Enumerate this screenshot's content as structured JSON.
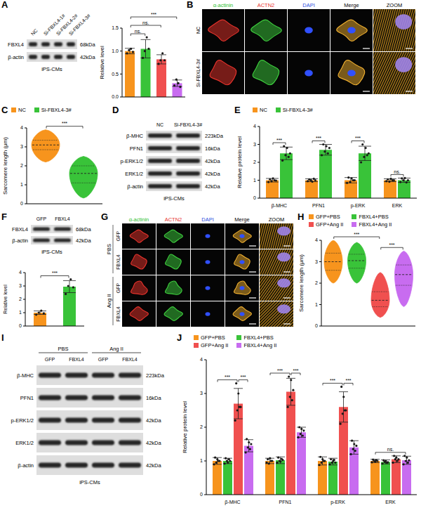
{
  "chart_data": [
    {
      "panel": "A",
      "type": "bar",
      "ylabel": "Relative level",
      "categories": [
        null,
        null,
        null,
        null
      ],
      "values": [
        1.0,
        1.05,
        0.82,
        0.3
      ],
      "errors": [
        0.06,
        0.2,
        0.1,
        0.07
      ],
      "points": [
        [
          0.95,
          1.02,
          1.05,
          0.98
        ],
        [
          0.85,
          1.0,
          1.3,
          1.05
        ],
        [
          0.72,
          0.8,
          0.95,
          0.8
        ],
        [
          0.25,
          0.38,
          0.3,
          0.22
        ]
      ],
      "colors": [
        "#f7941d",
        "#39c339",
        "#f0504f",
        "#c86cf0"
      ],
      "ylim": [
        0,
        1.5
      ],
      "yticks": [
        {
          "value": 0,
          "label": "0.0"
        },
        {
          "value": 0.5,
          "label": "0.5"
        },
        {
          "value": 1,
          "label": "1.0"
        },
        {
          "value": 1.5,
          "label": "1.5"
        }
      ],
      "tick_labels": "y",
      "annotations": [
        {
          "between": [
            0,
            1
          ],
          "label": "ns."
        },
        {
          "between": [
            0,
            2
          ],
          "label": "ns."
        },
        {
          "between": [
            0,
            3
          ],
          "label": "***"
        }
      ]
    },
    {
      "panel": "C",
      "type": "violin",
      "ylabel": "Sarcomere length (μm)",
      "legend": "top",
      "tick_labels": "y",
      "series": [
        {
          "name": "NC",
          "color": "#f7941d",
          "min": 2.2,
          "q1": 2.85,
          "median": 3.1,
          "q3": 3.35,
          "max": 3.9
        },
        {
          "name": "Si-FBXL4-3#",
          "color": "#39c339",
          "min": 0.3,
          "q1": 1.1,
          "median": 1.6,
          "q3": 2.0,
          "max": 2.5
        }
      ],
      "ylim": [
        0,
        4
      ],
      "yticks": [
        0,
        1,
        2,
        3,
        4
      ],
      "annotations": [
        {
          "between": [
            0,
            1
          ],
          "label": "***"
        }
      ]
    },
    {
      "panel": "E",
      "type": "bar",
      "ylabel": "Relative protein level",
      "legend": "top",
      "categories": [
        "β-MHC",
        "PFN1",
        "p-ERK",
        "ERK"
      ],
      "series": [
        {
          "name": "NC",
          "color": "#f7941d",
          "values": [
            1.0,
            1.0,
            1.0,
            1.0
          ],
          "errors": [
            0.1,
            0.08,
            0.15,
            0.08
          ],
          "points": [
            [
              0.9,
              1.05,
              0.95,
              1.1,
              1.0,
              0.98
            ],
            [
              0.95,
              1.05,
              1.0,
              0.92,
              1.08,
              1.0
            ],
            [
              0.85,
              1.15,
              0.9,
              1.1,
              1.0,
              1.0
            ],
            [
              0.95,
              1.05,
              0.92,
              1.08,
              1.0,
              1.0
            ]
          ]
        },
        {
          "name": "Si-FBXL4-3#",
          "color": "#39c339",
          "values": [
            2.5,
            2.7,
            2.5,
            1.0
          ],
          "errors": [
            0.35,
            0.3,
            0.4,
            0.12
          ],
          "points": [
            [
              2.1,
              2.9,
              2.4,
              2.8,
              2.3,
              2.5
            ],
            [
              2.4,
              3.0,
              2.6,
              2.9,
              2.5,
              2.8
            ],
            [
              2.0,
              3.0,
              2.3,
              2.8,
              2.4,
              2.5
            ],
            [
              0.9,
              1.1,
              1.0,
              1.12,
              0.88,
              1.0
            ]
          ]
        }
      ],
      "ylim": [
        0,
        4
      ],
      "yticks": [
        0,
        1,
        2,
        3,
        4
      ],
      "annotations": [
        {
          "category": 0,
          "between": [
            0,
            1
          ],
          "label": "***"
        },
        {
          "category": 1,
          "between": [
            0,
            1
          ],
          "label": "***"
        },
        {
          "category": 2,
          "between": [
            0,
            1
          ],
          "label": "***"
        },
        {
          "category": 3,
          "between": [
            0,
            1
          ],
          "label": "ns."
        }
      ]
    },
    {
      "panel": "F",
      "type": "bar",
      "ylabel": "Relative level",
      "categories": [
        null,
        null
      ],
      "values": [
        1.0,
        2.95
      ],
      "errors": [
        0.13,
        0.45
      ],
      "points": [
        [
          0.85,
          1.0,
          1.15,
          0.95
        ],
        [
          2.4,
          3.0,
          3.5,
          2.9
        ]
      ],
      "colors": [
        "#f7941d",
        "#39c339"
      ],
      "ylim": [
        0,
        4
      ],
      "yticks": [
        0,
        1,
        2,
        3,
        4
      ],
      "tick_labels": "y",
      "annotations": [
        {
          "between": [
            0,
            1
          ],
          "label": "***"
        }
      ]
    },
    {
      "panel": "H",
      "type": "violin",
      "ylabel": "Sarcomere length (μm)",
      "legend": "top",
      "tick_labels": "y",
      "series": [
        {
          "name": "GFP+PBS",
          "color": "#f7941d",
          "min": 2.0,
          "q1": 2.6,
          "median": 3.0,
          "q3": 3.4,
          "max": 4.0
        },
        {
          "name": "FBXL4+PBS",
          "color": "#39c339",
          "min": 2.0,
          "q1": 2.7,
          "median": 3.05,
          "q3": 3.35,
          "max": 3.9
        },
        {
          "name": "GFP+Ang II",
          "color": "#f0504f",
          "min": 0.4,
          "q1": 0.9,
          "median": 1.2,
          "q3": 1.6,
          "max": 2.5
        },
        {
          "name": "FBXL4+Ang II",
          "color": "#c86cf0",
          "min": 0.9,
          "q1": 1.9,
          "median": 2.4,
          "q3": 2.85,
          "max": 3.5
        }
      ],
      "ylim": [
        0,
        4
      ],
      "yticks": [
        0,
        1,
        2,
        3,
        4
      ],
      "annotations": [
        {
          "between": [
            0,
            2
          ],
          "label": "***"
        },
        {
          "between": [
            2,
            3
          ],
          "label": "***"
        }
      ]
    },
    {
      "panel": "J",
      "type": "bar",
      "ylabel": "Relative protein level",
      "legend": "top",
      "categories": [
        "β-MHC",
        "PFN1",
        "p-ERK",
        "ERK"
      ],
      "series": [
        {
          "name": "GFP+PBS",
          "color": "#f7941d",
          "values": [
            1.0,
            1.0,
            1.0,
            1.0
          ],
          "errors": [
            0.1,
            0.08,
            0.12,
            0.05
          ],
          "points": [
            [
              0.9,
              1.1,
              0.95,
              1.05,
              1.0,
              1.0
            ],
            [
              0.95,
              1.05,
              0.92,
              1.08,
              1.0,
              1.0
            ],
            [
              0.88,
              1.12,
              0.95,
              1.05,
              1.0,
              1.0
            ],
            [
              0.96,
              1.04,
              1.0,
              0.98,
              1.02,
              1.0
            ]
          ]
        },
        {
          "name": "FBXL4+PBS",
          "color": "#39c339",
          "values": [
            1.0,
            1.02,
            0.98,
            0.97
          ],
          "errors": [
            0.08,
            0.1,
            0.1,
            0.06
          ],
          "points": [
            [
              0.92,
              1.08,
              1.0,
              0.95,
              1.05,
              1.0
            ],
            [
              0.95,
              1.1,
              1.0,
              0.98,
              1.06,
              1.03
            ],
            [
              0.9,
              1.05,
              0.95,
              1.0,
              1.03,
              0.95
            ],
            [
              0.92,
              1.02,
              0.97,
              1.0,
              0.95,
              0.96
            ]
          ]
        },
        {
          "name": "GFP+Ang II",
          "color": "#f0504f",
          "values": [
            2.7,
            3.05,
            2.6,
            1.05
          ],
          "errors": [
            0.45,
            0.4,
            0.45,
            0.1
          ],
          "points": [
            [
              2.2,
              3.3,
              2.5,
              3.0,
              2.6,
              2.6
            ],
            [
              2.6,
              3.5,
              2.9,
              3.4,
              2.8,
              3.1
            ],
            [
              2.1,
              3.2,
              2.4,
              2.9,
              2.5,
              2.5
            ],
            [
              0.95,
              1.15,
              1.05,
              1.1,
              1.0,
              1.05
            ]
          ]
        },
        {
          "name": "FBXL4+Ang II",
          "color": "#c86cf0",
          "values": [
            1.45,
            1.85,
            1.4,
            1.02
          ],
          "errors": [
            0.18,
            0.15,
            0.2,
            0.12
          ],
          "points": [
            [
              1.25,
              1.65,
              1.4,
              1.55,
              1.35,
              1.5
            ],
            [
              1.7,
              2.0,
              1.8,
              1.95,
              1.75,
              1.9
            ],
            [
              1.2,
              1.6,
              1.35,
              1.5,
              1.3,
              1.45
            ],
            [
              0.9,
              1.15,
              1.0,
              1.1,
              0.95,
              1.02
            ]
          ]
        }
      ],
      "ylim": [
        0,
        4
      ],
      "yticks": [
        0,
        1,
        2,
        3,
        4
      ],
      "annotations": [
        {
          "category": 0,
          "between": [
            0,
            2
          ],
          "label": "***"
        },
        {
          "category": 0,
          "between": [
            2,
            3
          ],
          "label": "***"
        },
        {
          "category": 1,
          "between": [
            0,
            2
          ],
          "label": "***"
        },
        {
          "category": 1,
          "between": [
            2,
            3
          ],
          "label": "***"
        },
        {
          "category": 2,
          "between": [
            0,
            2
          ],
          "label": "***"
        },
        {
          "category": 2,
          "between": [
            2,
            3
          ],
          "label": "***"
        },
        {
          "category": 3,
          "between": [
            0,
            3
          ],
          "label": "ns."
        }
      ]
    }
  ],
  "blots": [
    {
      "panel": "A",
      "lanes": [
        "NC",
        "Si-FBXL4-1#",
        "Si-FBXL4-2#",
        "Si-FBXL4-3#"
      ],
      "rows": [
        {
          "label": "FBXL4",
          "kda": "68kDa"
        },
        {
          "label": "β-actin",
          "kda": "42kDa"
        }
      ],
      "cell": "iPS-CMs"
    },
    {
      "panel": "D",
      "lanes": [
        "NC",
        "Si-FBXL4-3#"
      ],
      "rows": [
        {
          "label": "β-MHC",
          "kda": "223kDa"
        },
        {
          "label": "PFN1",
          "kda": "16kDa"
        },
        {
          "label": "p-ERK1/2",
          "kda": "42kDa"
        },
        {
          "label": "ERK1/2",
          "kda": "42kDa"
        },
        {
          "label": "β-actin",
          "kda": "42kDa"
        }
      ],
      "cell": "iPS-CMs"
    },
    {
      "panel": "F",
      "lanes": [
        "GFP",
        "FBXL4"
      ],
      "rows": [
        {
          "label": "FBXL4",
          "kda": "68kDa"
        },
        {
          "label": "β-actin",
          "kda": "42kDa"
        }
      ],
      "cell": "iPS-CMs"
    },
    {
      "panel": "I",
      "groups": [
        {
          "label": "PBS",
          "lanes": [
            "GFP",
            "FBXL4"
          ]
        },
        {
          "label": "Ang II",
          "lanes": [
            "GFP",
            "FBXL4"
          ]
        }
      ],
      "rows": [
        {
          "label": "β-MHC",
          "kda": "223kDa"
        },
        {
          "label": "PFN1",
          "kda": "16kDa"
        },
        {
          "label": "p-ERK1/2",
          "kda": "42kDa"
        },
        {
          "label": "ERK1/2",
          "kda": "42kDa"
        },
        {
          "label": "β-actin",
          "kda": "42kDa"
        }
      ],
      "cell": "iPS-CMs"
    }
  ],
  "images": [
    {
      "panel": "B",
      "columns": [
        "α-actinin",
        "ACTN2",
        "DAPI",
        "Merge",
        "ZOOM"
      ],
      "rows": [
        "NC",
        "Si-FBXL4-3#"
      ]
    },
    {
      "panel": "G",
      "columns": [
        "α-actinin",
        "ACTN2",
        "DAPI",
        "Merge",
        "ZOOM"
      ],
      "groups": [
        {
          "label": "PBS",
          "rows": [
            "GFP",
            "FBXL4"
          ]
        },
        {
          "label": "Ang II",
          "rows": [
            "GFP",
            "FBXL4"
          ]
        }
      ]
    }
  ]
}
